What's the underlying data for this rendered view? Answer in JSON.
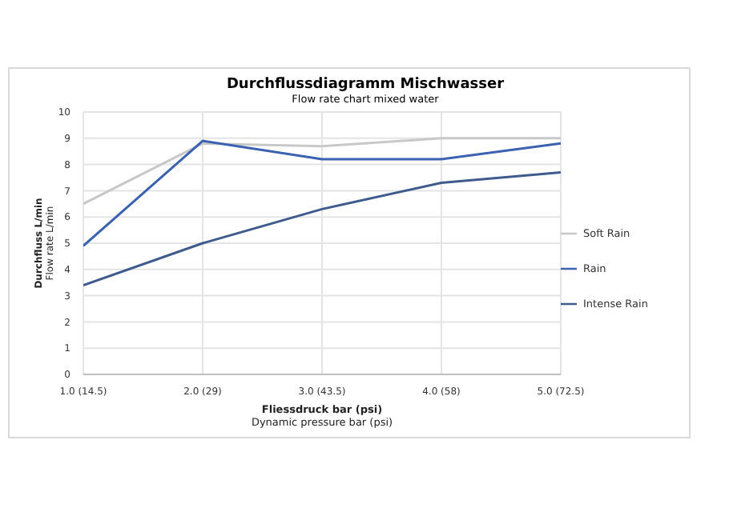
{
  "chart_data": {
    "type": "line",
    "title": "Durchflussdiagramm Mischwasser",
    "subtitle": "Flow rate chart mixed water",
    "xlabel": "Fliessdruck bar (psi)\nDynamic pressure bar (psi)",
    "ylabel": "Durchfluss L/min\nFlow rate L/min",
    "categories": [
      "1.0 (14.5)",
      "2.0 (29)",
      "3.0 (43.5)",
      "4.0 (58)",
      "5.0 (72.5)"
    ],
    "series": [
      {
        "name": "Soft Rain",
        "color": "#c8c8c8",
        "values": [
          6.5,
          8.8,
          8.7,
          9.0,
          9.0
        ]
      },
      {
        "name": "Rain",
        "color": "#3a62b0",
        "values": [
          4.9,
          8.9,
          8.2,
          8.2,
          8.8
        ]
      },
      {
        "name": "Intense Rain",
        "color": "#3f5a8c",
        "values": [
          3.4,
          5.0,
          6.3,
          7.3,
          7.7
        ]
      }
    ],
    "ylim": [
      0,
      10
    ],
    "yticks": [
      0,
      1,
      2,
      3,
      4,
      5,
      6,
      7,
      8,
      9,
      10
    ],
    "grid": true,
    "legend": "right",
    "marker": "none",
    "line_style": "solid"
  }
}
